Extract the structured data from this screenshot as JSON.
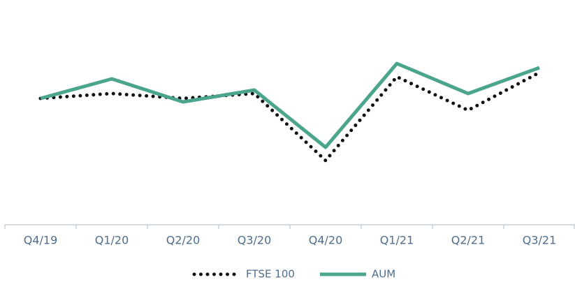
{
  "chart_data": {
    "type": "line",
    "categories": [
      "Q4/19",
      "Q1/20",
      "Q2/20",
      "Q3/20",
      "Q4/20",
      "Q1/21",
      "Q2/21",
      "Q3/21"
    ],
    "series": [
      {
        "name": "FTSE 100",
        "color": "#111111",
        "style": "dotted",
        "values": [
          181,
          188,
          181,
          188,
          92,
          212,
          164,
          218
        ]
      },
      {
        "name": "AUM",
        "color": "#4aa58c",
        "style": "solid",
        "values": [
          181,
          209,
          176,
          193,
          111,
          231,
          188,
          225
        ]
      }
    ],
    "ylim": [
      0,
      322
    ]
  }
}
